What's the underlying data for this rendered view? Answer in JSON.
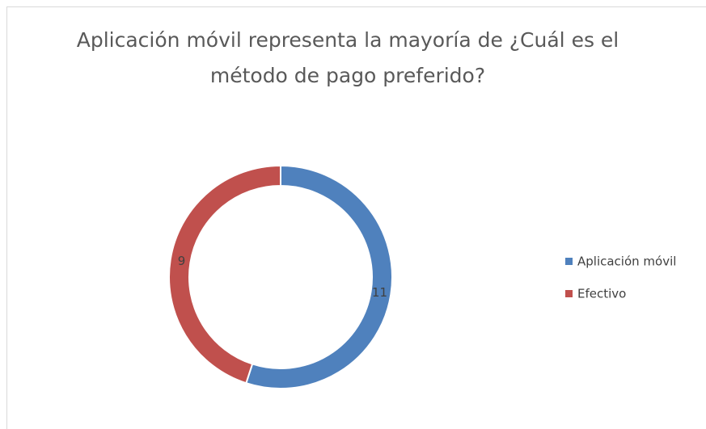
{
  "chart_data": {
    "type": "donut",
    "title": "Aplicación móvil representa la mayoría de ¿Cuál es el método de pago preferido?",
    "categories": [
      "Aplicación móvil",
      "Efectivo"
    ],
    "values": [
      11,
      9
    ],
    "colors": [
      "#4f81bd",
      "#c0504d"
    ],
    "legend": "right"
  }
}
